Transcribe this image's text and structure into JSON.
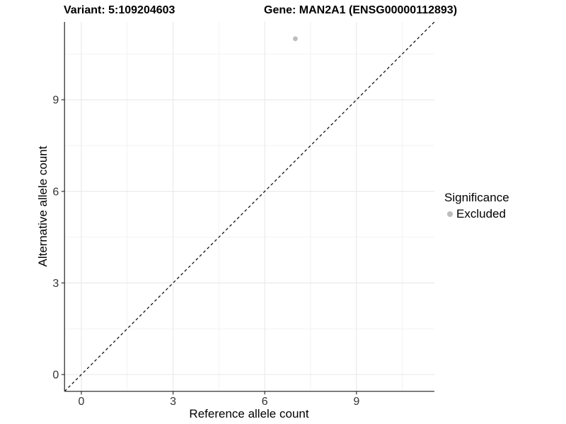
{
  "chart_data": {
    "type": "scatter",
    "title_left": "Variant: 5:109204603",
    "title_right": "Gene: MAN2A1 (ENSG00000112893)",
    "xlabel": "Reference allele count",
    "ylabel": "Alternative allele count",
    "xlim": [
      -0.55,
      11.55
    ],
    "ylim": [
      -0.55,
      11.55
    ],
    "x_ticks": [
      0,
      3,
      6,
      9
    ],
    "y_ticks": [
      0,
      3,
      6,
      9
    ],
    "x_minor_ticks": [
      1.5,
      4.5,
      7.5,
      10.5
    ],
    "y_minor_ticks": [
      1.5,
      4.5,
      7.5,
      10.5
    ],
    "grid": true,
    "identity_line": {
      "style": "dashed",
      "from": [
        -0.55,
        -0.55
      ],
      "to": [
        11.55,
        11.55
      ],
      "color": "#000000"
    },
    "series": [
      {
        "name": "Excluded",
        "color": "#bdbdbd",
        "points": [
          {
            "x": 7,
            "y": 11
          }
        ]
      }
    ],
    "legend": {
      "title": "Significance",
      "position": "right",
      "entries": [
        {
          "label": "Excluded",
          "color": "#bdbdbd"
        }
      ]
    },
    "colors": {
      "background": "#ffffff",
      "grid_major": "#e8e8e8",
      "grid_minor": "#f2f2f2",
      "axis_line": "#333333",
      "tick_label": "#333333",
      "title": "#000000"
    }
  }
}
